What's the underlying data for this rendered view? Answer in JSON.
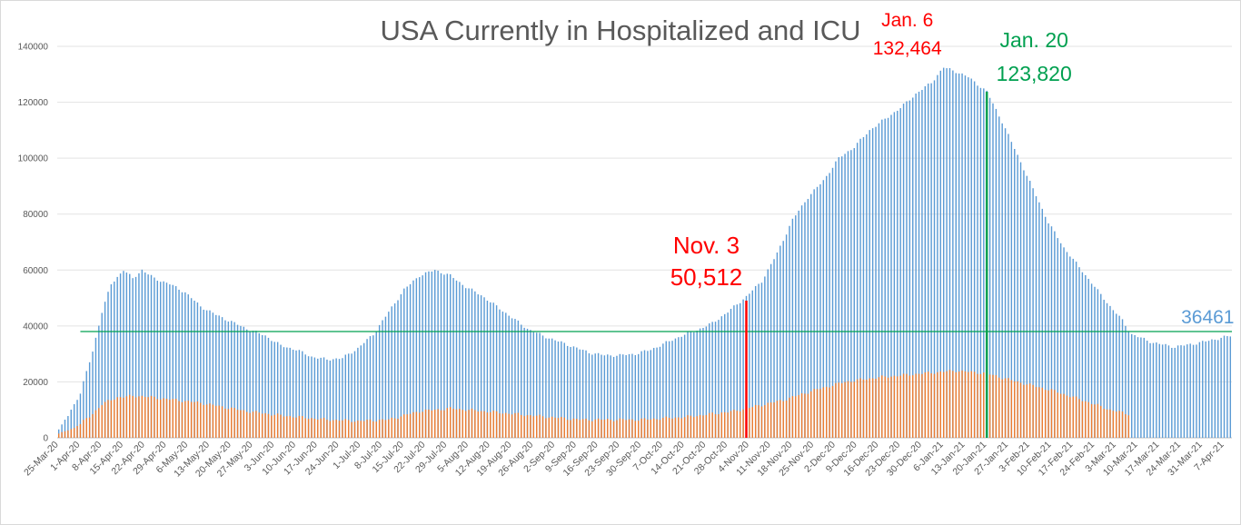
{
  "chart_data": {
    "type": "bar",
    "title": "USA Currently in Hospitalized and ICU",
    "xlabel": "",
    "ylabel": "",
    "ylim": [
      0,
      140000
    ],
    "y_ticks": [
      0,
      20000,
      40000,
      60000,
      80000,
      100000,
      120000,
      140000
    ],
    "grid": true,
    "legend": "none",
    "x_start": "2020-03-25",
    "x_end": "2021-04-09",
    "x_tick_labels": [
      "25-Mar-20",
      "1-Apr-20",
      "8-Apr-20",
      "15-Apr-20",
      "22-Apr-20",
      "29-Apr-20",
      "6-May-20",
      "13-May-20",
      "20-May-20",
      "27-May-20",
      "3-Jun-20",
      "10-Jun-20",
      "17-Jun-20",
      "24-Jun-20",
      "1-Jul-20",
      "8-Jul-20",
      "15-Jul-20",
      "22-Jul-20",
      "29-Jul-20",
      "5-Aug-20",
      "12-Aug-20",
      "19-Aug-20",
      "26-Aug-20",
      "2-Sep-20",
      "9-Sep-20",
      "16-Sep-20",
      "23-Sep-20",
      "30-Sep-20",
      "7-Oct-20",
      "14-Oct-20",
      "21-Oct-20",
      "28-Oct-20",
      "4-Nov-20",
      "11-Nov-20",
      "18-Nov-20",
      "25-Nov-20",
      "2-Dec-20",
      "9-Dec-20",
      "16-Dec-20",
      "23-Dec-20",
      "30-Dec-20",
      "6-Jan-21",
      "13-Jan-21",
      "20-Jan-21",
      "27-Jan-21",
      "3-Feb-21",
      "10-Feb-21",
      "17-Feb-21",
      "24-Feb-21",
      "3-Mar-21",
      "10-Mar-21",
      "17-Mar-21",
      "24-Mar-21",
      "31-Mar-21",
      "7-Apr-21"
    ],
    "series": [
      {
        "color": "#5b9bd5",
        "points": [
          [
            "2020-03-25",
            3000
          ],
          [
            "2020-03-28",
            8000
          ],
          [
            "2020-04-01",
            16000
          ],
          [
            "2020-04-05",
            31000
          ],
          [
            "2020-04-08",
            45000
          ],
          [
            "2020-04-11",
            55000
          ],
          [
            "2020-04-15",
            60000
          ],
          [
            "2020-04-18",
            57000
          ],
          [
            "2020-04-21",
            60000
          ],
          [
            "2020-04-25",
            57000
          ],
          [
            "2020-04-30",
            55000
          ],
          [
            "2020-05-05",
            52000
          ],
          [
            "2020-05-10",
            47000
          ],
          [
            "2020-05-15",
            44000
          ],
          [
            "2020-05-20",
            41500
          ],
          [
            "2020-05-25",
            39000
          ],
          [
            "2020-05-31",
            36500
          ],
          [
            "2020-06-05",
            33000
          ],
          [
            "2020-06-10",
            31500
          ],
          [
            "2020-06-15",
            29000
          ],
          [
            "2020-06-20",
            28000
          ],
          [
            "2020-06-25",
            28500
          ],
          [
            "2020-06-30",
            32000
          ],
          [
            "2020-07-05",
            37000
          ],
          [
            "2020-07-10",
            45000
          ],
          [
            "2020-07-15",
            53000
          ],
          [
            "2020-07-20",
            58000
          ],
          [
            "2020-07-25",
            60000
          ],
          [
            "2020-07-30",
            58000
          ],
          [
            "2020-08-04",
            54000
          ],
          [
            "2020-08-09",
            51000
          ],
          [
            "2020-08-14",
            47000
          ],
          [
            "2020-08-19",
            43000
          ],
          [
            "2020-08-24",
            39000
          ],
          [
            "2020-08-29",
            36500
          ],
          [
            "2020-09-03",
            34500
          ],
          [
            "2020-09-08",
            32500
          ],
          [
            "2020-09-13",
            30500
          ],
          [
            "2020-09-18",
            29500
          ],
          [
            "2020-09-23",
            29500
          ],
          [
            "2020-09-28",
            30000
          ],
          [
            "2020-10-03",
            31500
          ],
          [
            "2020-10-08",
            34000
          ],
          [
            "2020-10-13",
            36500
          ],
          [
            "2020-10-18",
            38500
          ],
          [
            "2020-10-23",
            41000
          ],
          [
            "2020-10-28",
            45000
          ],
          [
            "2020-11-03",
            50512
          ],
          [
            "2020-11-08",
            56000
          ],
          [
            "2020-11-13",
            66000
          ],
          [
            "2020-11-18",
            78000
          ],
          [
            "2020-11-23",
            86000
          ],
          [
            "2020-11-28",
            92000
          ],
          [
            "2020-12-03",
            100000
          ],
          [
            "2020-12-08",
            104000
          ],
          [
            "2020-12-13",
            110000
          ],
          [
            "2020-12-18",
            114000
          ],
          [
            "2020-12-23",
            118000
          ],
          [
            "2020-12-28",
            123000
          ],
          [
            "2021-01-02",
            127000
          ],
          [
            "2021-01-06",
            132464
          ],
          [
            "2021-01-10",
            131000
          ],
          [
            "2021-01-14",
            129000
          ],
          [
            "2021-01-20",
            123820
          ],
          [
            "2021-01-25",
            113000
          ],
          [
            "2021-01-30",
            101000
          ],
          [
            "2021-02-04",
            89000
          ],
          [
            "2021-02-09",
            77000
          ],
          [
            "2021-02-14",
            68000
          ],
          [
            "2021-02-19",
            61000
          ],
          [
            "2021-02-24",
            54000
          ],
          [
            "2021-03-01",
            47000
          ],
          [
            "2021-03-05",
            42000
          ],
          [
            "2021-03-08",
            37000
          ],
          [
            "2021-03-15",
            34000
          ],
          [
            "2021-03-22",
            32500
          ],
          [
            "2021-03-30",
            34000
          ],
          [
            "2021-04-05",
            35500
          ],
          [
            "2021-04-09",
            36461
          ]
        ]
      },
      {
        "color": "#ed7d31",
        "end": "2021-03-07",
        "points": [
          [
            "2020-03-25",
            1500
          ],
          [
            "2020-03-30",
            3500
          ],
          [
            "2020-04-04",
            7500
          ],
          [
            "2020-04-08",
            12000
          ],
          [
            "2020-04-13",
            14500
          ],
          [
            "2020-04-20",
            15000
          ],
          [
            "2020-04-28",
            14000
          ],
          [
            "2020-05-10",
            12500
          ],
          [
            "2020-05-25",
            9500
          ],
          [
            "2020-06-05",
            8000
          ],
          [
            "2020-06-20",
            6500
          ],
          [
            "2020-06-30",
            6000
          ],
          [
            "2020-07-10",
            6500
          ],
          [
            "2020-07-20",
            9500
          ],
          [
            "2020-07-30",
            10500
          ],
          [
            "2020-08-10",
            9500
          ],
          [
            "2020-08-25",
            8000
          ],
          [
            "2020-09-10",
            6500
          ],
          [
            "2020-09-30",
            6500
          ],
          [
            "2020-10-15",
            7500
          ],
          [
            "2020-10-30",
            9500
          ],
          [
            "2020-11-03",
            10500
          ],
          [
            "2020-11-15",
            13500
          ],
          [
            "2020-11-25",
            17000
          ],
          [
            "2020-12-05",
            20000
          ],
          [
            "2020-12-15",
            21500
          ],
          [
            "2020-12-30",
            23000
          ],
          [
            "2021-01-10",
            24000
          ],
          [
            "2021-01-20",
            23000
          ],
          [
            "2021-01-30",
            20000
          ],
          [
            "2021-02-10",
            17000
          ],
          [
            "2021-02-20",
            13500
          ],
          [
            "2021-03-01",
            10000
          ],
          [
            "2021-03-07",
            8500
          ]
        ]
      }
    ],
    "reference_line": {
      "value": 38000,
      "color": "#00a050"
    },
    "annotations": [
      {
        "date": "2020-11-03",
        "value": 50512,
        "line_color": "#ff0000",
        "text1": "Nov. 3",
        "text2": "50,512",
        "color": "#ff0000"
      },
      {
        "date": "2021-01-06",
        "value": 132464,
        "text1": "Jan. 6",
        "text2": "132,464",
        "color": "#ff0000"
      },
      {
        "date": "2021-01-20",
        "value": 123820,
        "line_color": "#00a050",
        "text1": "Jan. 20",
        "text2": "123,820",
        "color": "#00a050"
      },
      {
        "date": "2021-04-09",
        "value": 36461,
        "text1": "36461",
        "color": "#5b9bd5"
      }
    ]
  }
}
